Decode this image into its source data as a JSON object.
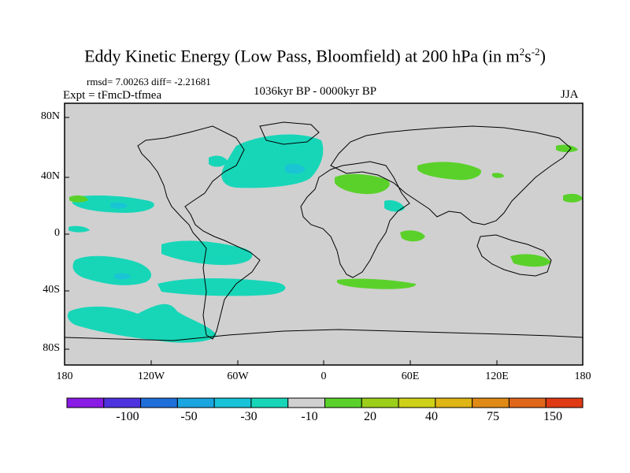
{
  "title_main": "Eddy Kinetic Energy (Low Pass, Bloomfield) at 200 hPa (in m",
  "title_sup1": "2",
  "title_mid": "s",
  "title_sup2": "-2",
  "title_end": ")",
  "rmsd_line": "rmsd= 7.00263 diff= -2.21681",
  "expt_line": "Expt = tFmcD-tfmea",
  "period": "1036kyr BP - 0000kyr BP",
  "season": "JJA",
  "lat_labels": [
    "80N",
    "40N",
    "0",
    "40S",
    "80S"
  ],
  "lon_labels": [
    "180",
    "120W",
    "60W",
    "0",
    "60E",
    "120E",
    "180"
  ],
  "colorbar": {
    "colors": [
      "#8a1ae6",
      "#4d33e0",
      "#1f6fdb",
      "#19a6e0",
      "#17c3d9",
      "#17d6b8",
      "#d0d0d0",
      "#5ad12a",
      "#9ccf19",
      "#cfd119",
      "#e0b516",
      "#e08a16",
      "#e0661a",
      "#e03a14"
    ],
    "labels": [
      "-100",
      "-50",
      "-30",
      "-10",
      "20",
      "40",
      "75",
      "150"
    ]
  },
  "colors": {
    "ocean_land_bg": "#d0d0d0",
    "negative_fill": "#17d6b8",
    "negative_core": "#19c4d4",
    "positive_fill": "#5ad12a"
  }
}
